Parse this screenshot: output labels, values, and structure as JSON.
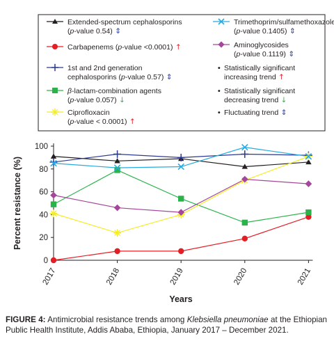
{
  "chart_data": {
    "type": "line",
    "xlabel": "Years",
    "ylabel": "Percent resistance (%)",
    "x": [
      "2017",
      "2018",
      "2019",
      "2020",
      "2021"
    ],
    "yticks": [
      "0",
      "20",
      "40",
      "60",
      "80",
      "100"
    ],
    "ylim": [
      0,
      100
    ],
    "grid": false,
    "legend_position": "top",
    "series": [
      {
        "key": "esc",
        "marker": "triangle",
        "color": "#231f20",
        "line1": "Extended-spectrum cephalosporins",
        "line2_pre": "(",
        "line2_p": "p",
        "line2_post": "-value 0.54)",
        "trend_arrow": "⇕",
        "arrow_color": "#2b3990",
        "values": [
          91,
          87,
          89,
          82,
          86
        ]
      },
      {
        "key": "carb",
        "marker": "circle",
        "color": "#e31e24",
        "line1": "Carbapenems (",
        "line1_p": "p",
        "line1_post": "-value <0.0001)",
        "trend_arrow": "↑",
        "arrow_color": "#e31e24",
        "values": [
          0,
          8,
          8,
          19,
          38
        ]
      },
      {
        "key": "gen12",
        "marker": "plus",
        "color": "#2b3990",
        "line1": "1st and 2nd generation",
        "line2_pre": "cephalosporins (",
        "line2_p": "p",
        "line2_post": "-value 0.57)",
        "trend_arrow": "⇕",
        "arrow_color": "#2b3990",
        "values": [
          86,
          93,
          90,
          93,
          92
        ]
      },
      {
        "key": "blact",
        "marker": "square",
        "color": "#2bb34b",
        "line1_greek": "β",
        "line1": "-lactam-combination agents",
        "line2_pre": "(",
        "line2_p": "p",
        "line2_post": "-value 0.057)",
        "trend_arrow": "↓",
        "arrow_color": "#2bb34b",
        "values": [
          49,
          79,
          54,
          33,
          42
        ]
      },
      {
        "key": "cipro",
        "marker": "star",
        "color": "#f4ec29",
        "line1": "Ciprofloxacin",
        "line2_pre": "(",
        "line2_p": "p",
        "line2_post": "-value < 0.0001)",
        "trend_arrow": "↑",
        "arrow_color": "#e31e24",
        "values": [
          41,
          24,
          40,
          70,
          91
        ]
      },
      {
        "key": "tmp",
        "marker": "x",
        "color": "#27aae1",
        "line1": "Trimethoprim/sulfamethoxazole",
        "line2_pre": "(",
        "line2_p": "p",
        "line2_post": "-value 0.1405)",
        "trend_arrow": "⇕",
        "arrow_color": "#2b3990",
        "values": [
          85,
          81,
          82,
          99,
          91
        ]
      },
      {
        "key": "amino",
        "marker": "diamond",
        "color": "#a4479b",
        "line1": "Aminoglycosides",
        "line2_pre": "(",
        "line2_p": "p",
        "line2_post": "-value 0.1119)",
        "trend_arrow": "⇕",
        "arrow_color": "#2b3990",
        "values": [
          57,
          46,
          42,
          71,
          67
        ]
      }
    ],
    "notes": [
      {
        "bullet": "•",
        "line1": "Statistically significant",
        "line2": "increasing trend",
        "arrow": "↑",
        "arrow_color": "#e31e24"
      },
      {
        "bullet": "•",
        "line1": "Statistically significant",
        "line2": "decreasing trend",
        "arrow": "↓",
        "arrow_color": "#2bb34b"
      },
      {
        "bullet": "•",
        "line1": "Fluctuating trend",
        "line2": "",
        "arrow": "⇕",
        "arrow_color": "#2b3990"
      }
    ]
  },
  "caption": {
    "label": "FIGURE 4:",
    "text_pre": " Antimicrobial resistance trends among ",
    "organism": "Klebsiella pneumoniae",
    "text_post": " at the Ethiopian Public Health Institute, Addis Ababa, Ethiopia, January 2017 – December 2021."
  }
}
